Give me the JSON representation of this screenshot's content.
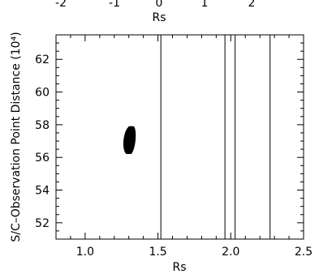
{
  "top_strip": {
    "tick_labels": [
      "-2",
      "-1",
      "0",
      "1",
      "2"
    ],
    "xlabel": "Rs"
  },
  "chart_data": {
    "type": "scatter",
    "title": "",
    "xlabel": "Rs",
    "ylabel": "S/C–Observation Point Distance (10⁴)",
    "xlim": [
      0.8,
      2.5
    ],
    "ylim": [
      51,
      63.5
    ],
    "x_ticks": [
      1.0,
      1.5,
      2.0,
      2.5
    ],
    "x_tick_labels": [
      "1.0",
      "1.5",
      "2.0",
      "2.5"
    ],
    "y_ticks": [
      52,
      54,
      56,
      58,
      60,
      62
    ],
    "y_tick_labels": [
      "52",
      "54",
      "56",
      "58",
      "60",
      "62"
    ],
    "vertical_lines": [
      1.52,
      1.96,
      2.03,
      2.27
    ],
    "cluster": {
      "center_x": 1.31,
      "center_y": 57.05,
      "x_range": [
        1.27,
        1.34
      ],
      "y_range": [
        56.4,
        57.9
      ]
    },
    "grid": false,
    "legend": "none"
  }
}
